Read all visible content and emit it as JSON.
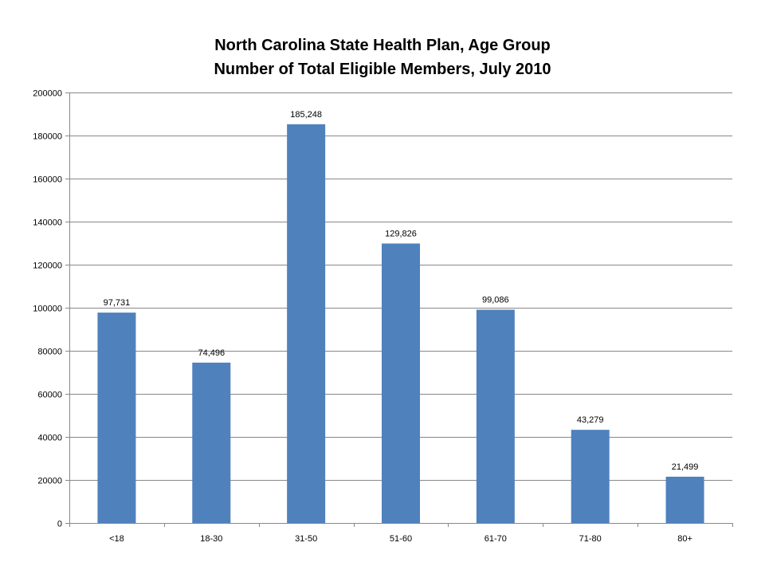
{
  "chart_data": {
    "type": "bar",
    "title_lines": [
      "North Carolina State Health Plan, Age Group",
      "Number of Total Eligible Members, July 2010"
    ],
    "categories": [
      "<18",
      "18-30",
      "31-50",
      "51-60",
      "61-70",
      "71-80",
      "80+"
    ],
    "values": [
      97731,
      74496,
      185248,
      129826,
      99086,
      43279,
      21499
    ],
    "data_labels": [
      "97,731",
      "74,496",
      "185,248",
      "129,826",
      "99,086",
      "43,279",
      "21,499"
    ],
    "y_ticks": [
      "0",
      "20000",
      "40000",
      "60000",
      "80000",
      "100000",
      "120000",
      "140000",
      "160000",
      "180000",
      "200000"
    ],
    "ylim": [
      0,
      200000
    ],
    "y_tick_step": 20000,
    "grid": true,
    "legend": false,
    "bar_color": "#4F81BD",
    "grid_color": "#888888"
  }
}
